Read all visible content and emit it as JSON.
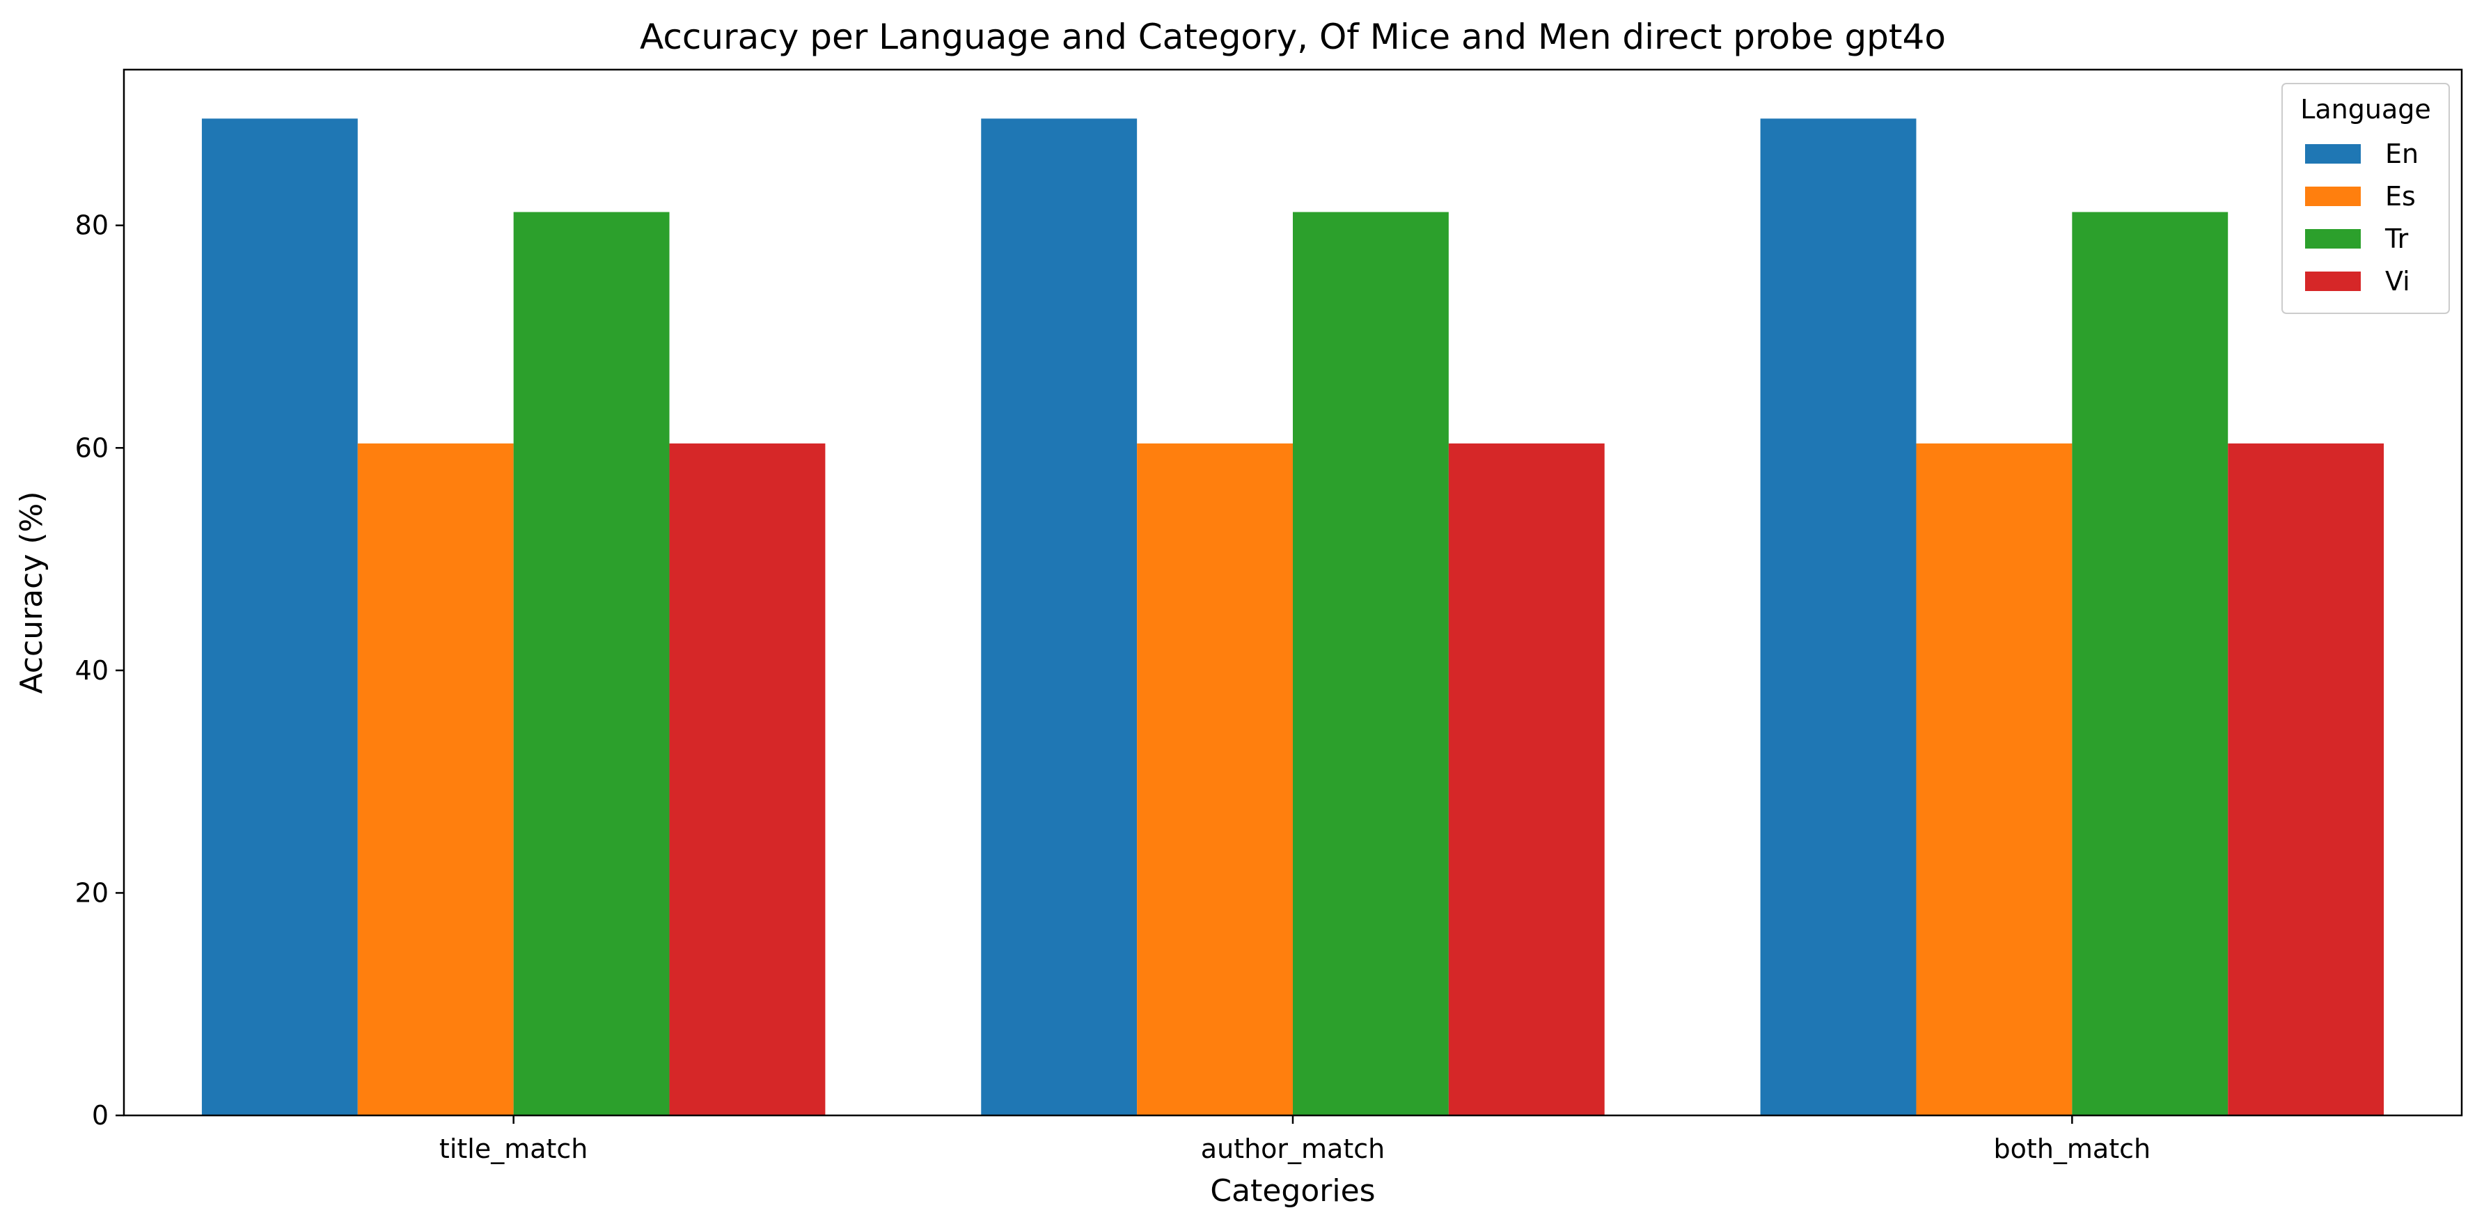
{
  "chart_data": {
    "type": "bar",
    "title": "Accuracy per Language and Category, Of Mice and Men direct probe gpt4o",
    "xlabel": "Categories",
    "ylabel": "Accuracy (%)",
    "categories": [
      "title_match",
      "author_match",
      "both_match"
    ],
    "ylim": [
      0,
      94
    ],
    "yticks": [
      0,
      20,
      40,
      60,
      80
    ],
    "grid": false,
    "legend": {
      "title": "Language",
      "placement": "top-right"
    },
    "series": [
      {
        "name": "En",
        "color": "#1f77b4",
        "values": [
          89.6,
          89.6,
          89.6
        ]
      },
      {
        "name": "Es",
        "color": "#ff7f0e",
        "values": [
          60.4,
          60.4,
          60.4
        ]
      },
      {
        "name": "Tr",
        "color": "#2ca02c",
        "values": [
          81.2,
          81.2,
          81.2
        ]
      },
      {
        "name": "Vi",
        "color": "#d62728",
        "values": [
          60.4,
          60.4,
          60.4
        ]
      }
    ]
  }
}
